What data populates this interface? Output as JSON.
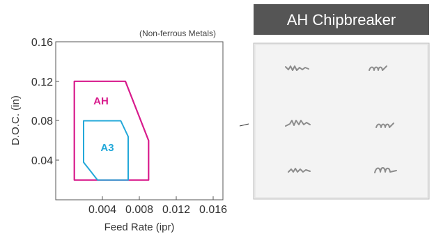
{
  "chart": {
    "note": "(Non-ferrous Metals)",
    "xlabel": "Feed Rate (ipr)",
    "ylabel": "D.O.C. (in)",
    "x_ticks": [
      "0.004",
      "0.008",
      "0.012",
      "0.016"
    ],
    "y_ticks": [
      "0.04",
      "0.08",
      "0.12",
      "0.16"
    ],
    "x_range": [
      0,
      0.018
    ],
    "y_range": [
      0,
      0.16
    ],
    "regions": [
      {
        "label": "AH",
        "color": "#d81b8c",
        "outline": [
          [
            0.002,
            0.02
          ],
          [
            0.01,
            0.02
          ],
          [
            0.01,
            0.06
          ],
          [
            0.0075,
            0.12
          ],
          [
            0.002,
            0.12
          ]
        ]
      },
      {
        "label": "A3",
        "color": "#23a8d9",
        "outline": [
          [
            0.0045,
            0.02
          ],
          [
            0.0078,
            0.02
          ],
          [
            0.0078,
            0.064
          ],
          [
            0.007,
            0.08
          ],
          [
            0.003,
            0.08
          ],
          [
            0.003,
            0.038
          ]
        ]
      }
    ]
  },
  "photo": {
    "title": "AH Chipbreaker",
    "banner_color": "#555555"
  }
}
